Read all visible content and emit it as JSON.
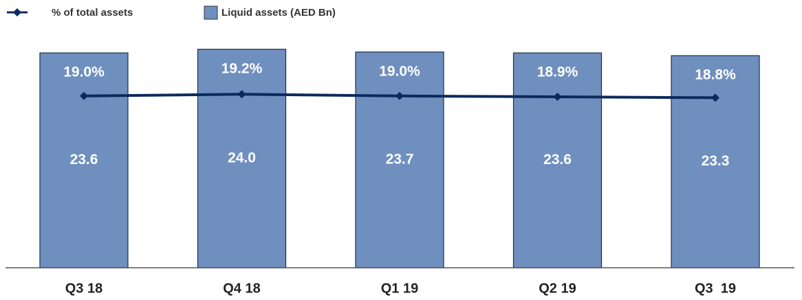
{
  "chart_data": {
    "type": "bar",
    "categories": [
      "Q3 18",
      "Q4 18",
      "Q1 19",
      "Q2 19",
      "Q3  19"
    ],
    "series": [
      {
        "name": "% of total assets",
        "type": "line",
        "axis": "y2",
        "color": "#0b2a5e",
        "values": [
          19.0,
          19.2,
          19.0,
          18.9,
          18.8
        ],
        "value_labels": [
          "19.0%",
          "19.2%",
          "19.0%",
          "18.9%",
          "18.8%"
        ]
      },
      {
        "name": "Liquid assets (AED Bn)",
        "type": "bar",
        "color": "#6f8fbf",
        "values": [
          23.6,
          24.0,
          23.7,
          23.6,
          23.3
        ],
        "value_labels": [
          "23.6",
          "24.0",
          "23.7",
          "23.6",
          "23.3"
        ]
      }
    ],
    "ylim": [
      0,
      25
    ],
    "y2lim": [
      -1,
      25.5
    ]
  }
}
